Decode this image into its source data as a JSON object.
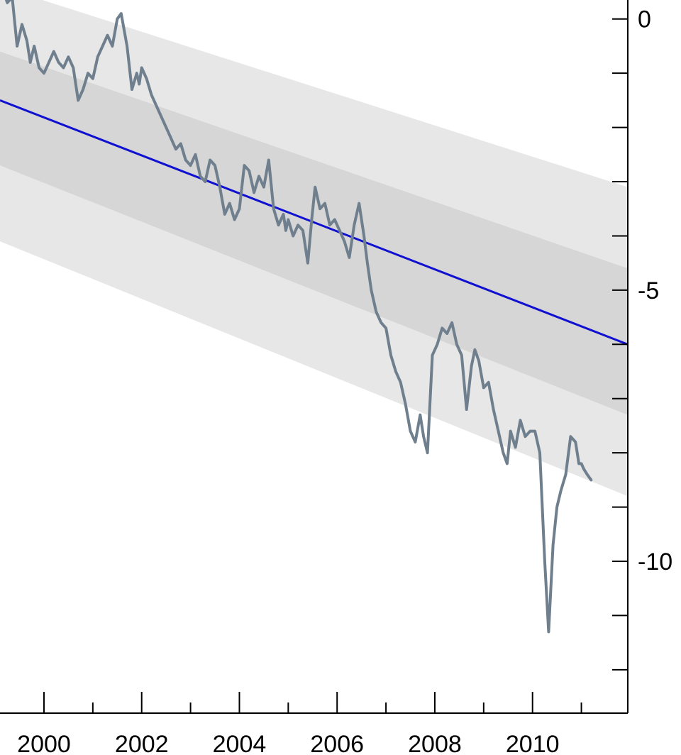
{
  "chart_data": {
    "type": "line",
    "title": "",
    "xlabel": "",
    "ylabel": "",
    "xlim": [
      1999.1,
      2011.95
    ],
    "ylim": [
      -12.8,
      0.35
    ],
    "grid": false,
    "legend": "none",
    "x_major_ticks": [
      2000,
      2002,
      2004,
      2006,
      2008,
      2010
    ],
    "x_tick_labels": [
      "2000",
      "2002",
      "2004",
      "2006",
      "2008",
      "2010"
    ],
    "x_minor_ticks": [
      2001,
      2003,
      2005,
      2007,
      2009,
      2011
    ],
    "y_ticks": [
      0,
      -1,
      -2,
      -3,
      -4,
      -5,
      -6,
      -7,
      -8,
      -9,
      -10,
      -11,
      -12,
      -13
    ],
    "y_tick_labels": [
      {
        "value": 0,
        "label": "0"
      },
      {
        "value": -5,
        "label": "-5"
      },
      {
        "value": -10,
        "label": "-10"
      }
    ],
    "trend_line": {
      "color": "#1010d0",
      "points": [
        [
          1999.1,
          -1.5
        ],
        [
          2011.95,
          -6.0
        ]
      ]
    },
    "bands": [
      {
        "level": "outer",
        "color": "#e7e7e7",
        "upper": [
          [
            1999.1,
            0.6
          ],
          [
            2011.95,
            -3.1
          ]
        ],
        "lower": [
          [
            1999.1,
            -4.1
          ],
          [
            2011.95,
            -8.8
          ]
        ]
      },
      {
        "level": "inner",
        "color": "#d6d6d6",
        "upper": [
          [
            1999.1,
            -0.6
          ],
          [
            2011.95,
            -4.6
          ]
        ],
        "lower": [
          [
            1999.1,
            -2.7
          ],
          [
            2011.95,
            -7.3
          ]
        ]
      }
    ],
    "series": [
      {
        "color": "#6f7f8e",
        "x": [
          1999.1,
          1999.25,
          1999.35,
          1999.45,
          1999.55,
          1999.65,
          1999.72,
          1999.8,
          1999.9,
          2000.0,
          2000.1,
          2000.2,
          2000.3,
          2000.4,
          2000.5,
          2000.6,
          2000.7,
          2000.8,
          2000.9,
          2001.0,
          2001.1,
          2001.2,
          2001.3,
          2001.4,
          2001.5,
          2001.58,
          2001.7,
          2001.8,
          2001.9,
          2001.95,
          2002.0,
          2002.1,
          2002.2,
          2002.3,
          2002.4,
          2002.5,
          2002.6,
          2002.7,
          2002.8,
          2002.9,
          2003.0,
          2003.1,
          2003.2,
          2003.3,
          2003.4,
          2003.5,
          2003.6,
          2003.7,
          2003.8,
          2003.9,
          2004.0,
          2004.1,
          2004.2,
          2004.3,
          2004.4,
          2004.5,
          2004.6,
          2004.7,
          2004.8,
          2004.9,
          2004.95,
          2005.0,
          2005.1,
          2005.2,
          2005.3,
          2005.4,
          2005.48,
          2005.55,
          2005.65,
          2005.75,
          2005.85,
          2005.95,
          2006.05,
          2006.15,
          2006.25,
          2006.35,
          2006.45,
          2006.55,
          2006.62,
          2006.7,
          2006.8,
          2006.9,
          2007.0,
          2007.1,
          2007.2,
          2007.3,
          2007.4,
          2007.5,
          2007.6,
          2007.7,
          2007.77,
          2007.85,
          2007.95,
          2008.05,
          2008.15,
          2008.25,
          2008.35,
          2008.45,
          2008.55,
          2008.65,
          2008.75,
          2008.82,
          2008.9,
          2009.0,
          2009.1,
          2009.2,
          2009.3,
          2009.4,
          2009.48,
          2009.55,
          2009.65,
          2009.75,
          2009.85,
          2009.95,
          2010.05,
          2010.15,
          2010.25,
          2010.33,
          2010.42,
          2010.5,
          2010.58,
          2010.68,
          2010.78,
          2010.88,
          2010.95,
          2011.0,
          2011.05,
          2011.12,
          2011.2
        ],
        "y": [
          0.7,
          0.3,
          0.4,
          -0.5,
          -0.1,
          -0.4,
          -0.8,
          -0.5,
          -0.9,
          -1.0,
          -0.8,
          -0.6,
          -0.8,
          -0.9,
          -0.7,
          -0.9,
          -1.5,
          -1.3,
          -1.0,
          -1.1,
          -0.7,
          -0.5,
          -0.3,
          -0.5,
          0.0,
          0.1,
          -0.5,
          -1.3,
          -1.0,
          -1.2,
          -0.9,
          -1.1,
          -1.4,
          -1.6,
          -1.8,
          -2.0,
          -2.2,
          -2.4,
          -2.3,
          -2.6,
          -2.7,
          -2.5,
          -2.9,
          -3.0,
          -2.6,
          -2.7,
          -3.1,
          -3.6,
          -3.4,
          -3.7,
          -3.5,
          -2.7,
          -2.8,
          -3.2,
          -2.9,
          -3.1,
          -2.6,
          -3.5,
          -3.8,
          -3.6,
          -3.9,
          -3.7,
          -4.0,
          -3.8,
          -3.9,
          -4.5,
          -3.7,
          -3.1,
          -3.5,
          -3.4,
          -3.8,
          -3.7,
          -3.9,
          -4.1,
          -4.4,
          -3.8,
          -3.4,
          -4.0,
          -4.5,
          -5.0,
          -5.4,
          -5.6,
          -5.7,
          -6.2,
          -6.5,
          -6.7,
          -7.1,
          -7.6,
          -7.8,
          -7.3,
          -7.7,
          -8.0,
          -6.2,
          -6.0,
          -5.7,
          -5.8,
          -5.6,
          -6.0,
          -6.2,
          -7.2,
          -6.4,
          -6.1,
          -6.3,
          -6.8,
          -6.7,
          -7.2,
          -7.6,
          -8.0,
          -8.2,
          -7.6,
          -7.9,
          -7.4,
          -7.7,
          -7.6,
          -7.6,
          -8.0,
          -10.0,
          -11.3,
          -9.7,
          -9.0,
          -8.7,
          -8.4,
          -7.7,
          -7.8,
          -8.2,
          -8.2,
          -8.3,
          -8.4,
          -8.5
        ]
      }
    ]
  }
}
